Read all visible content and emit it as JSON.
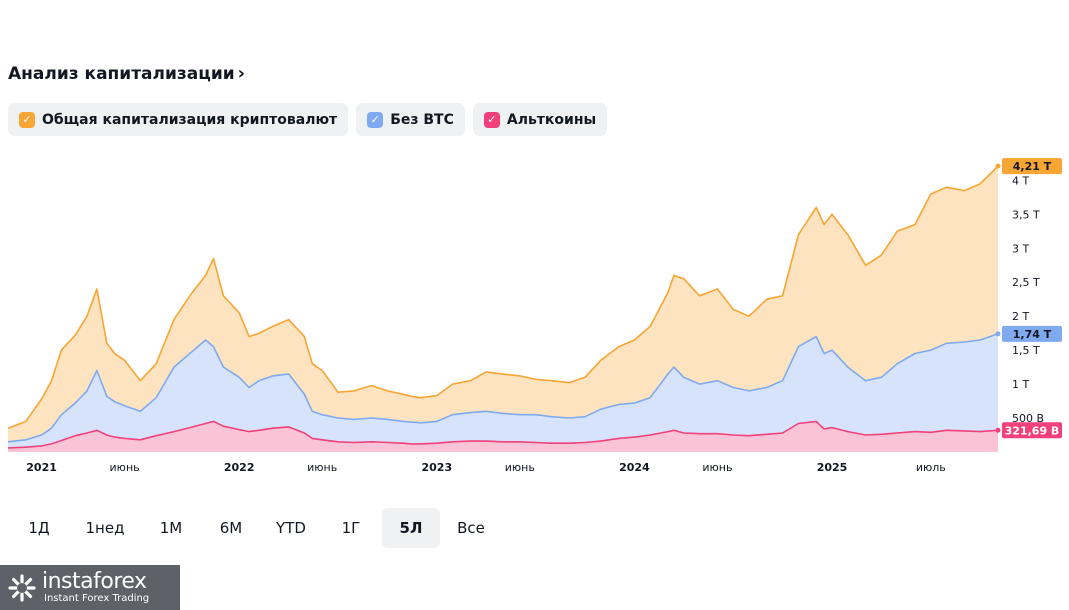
{
  "header": {
    "title": "Анализ капитализации",
    "chevron": "›"
  },
  "legend": [
    {
      "label": "Общая капитализация криптовалют",
      "color": "#f7a533",
      "checked": true
    },
    {
      "label": "Без BTC",
      "color": "#7faaf0",
      "checked": true
    },
    {
      "label": "Альткоины",
      "color": "#f2407a",
      "checked": true
    }
  ],
  "chart_data": {
    "type": "area",
    "title": "Анализ капитализации",
    "x_range": [
      2020.83,
      2025.84
    ],
    "y_range": [
      0,
      4.3
    ],
    "y_ticks": [
      {
        "value": 0.5,
        "label": "500 B"
      },
      {
        "value": 1.0,
        "label": "1 T"
      },
      {
        "value": 1.5,
        "label": "1,5 T"
      },
      {
        "value": 2.0,
        "label": "2 T"
      },
      {
        "value": 2.5,
        "label": "2,5 T"
      },
      {
        "value": 3.0,
        "label": "3 T"
      },
      {
        "value": 3.5,
        "label": "3,5 T"
      },
      {
        "value": 4.0,
        "label": "4 T"
      }
    ],
    "x_ticks": [
      {
        "value": 2021.0,
        "label": "2021",
        "major": true
      },
      {
        "value": 2021.42,
        "label": "июнь",
        "major": false
      },
      {
        "value": 2022.0,
        "label": "2022",
        "major": true
      },
      {
        "value": 2022.42,
        "label": "июнь",
        "major": false
      },
      {
        "value": 2023.0,
        "label": "2023",
        "major": true
      },
      {
        "value": 2023.42,
        "label": "июнь",
        "major": false
      },
      {
        "value": 2024.0,
        "label": "2024",
        "major": true
      },
      {
        "value": 2024.42,
        "label": "июнь",
        "major": false
      },
      {
        "value": 2025.0,
        "label": "2025",
        "major": true
      },
      {
        "value": 2025.5,
        "label": "июль",
        "major": false
      }
    ],
    "x": [
      2020.83,
      2020.92,
      2021.0,
      2021.05,
      2021.1,
      2021.17,
      2021.23,
      2021.28,
      2021.33,
      2021.37,
      2021.42,
      2021.5,
      2021.58,
      2021.67,
      2021.75,
      2021.83,
      2021.87,
      2021.92,
      2022.0,
      2022.05,
      2022.1,
      2022.17,
      2022.25,
      2022.33,
      2022.37,
      2022.42,
      2022.5,
      2022.58,
      2022.67,
      2022.75,
      2022.83,
      2022.87,
      2022.92,
      2023.0,
      2023.08,
      2023.17,
      2023.25,
      2023.33,
      2023.42,
      2023.5,
      2023.58,
      2023.67,
      2023.75,
      2023.83,
      2023.92,
      2024.0,
      2024.08,
      2024.17,
      2024.2,
      2024.25,
      2024.33,
      2024.42,
      2024.5,
      2024.58,
      2024.67,
      2024.75,
      2024.83,
      2024.92,
      2024.96,
      2025.0,
      2025.08,
      2025.17,
      2025.25,
      2025.33,
      2025.42,
      2025.5,
      2025.58,
      2025.67,
      2025.75,
      2025.84
    ],
    "series": [
      {
        "name": "Общая капитализация криптовалют",
        "color": "#f7a533",
        "last_label": "4,21 T",
        "values": [
          0.35,
          0.45,
          0.78,
          1.05,
          1.5,
          1.72,
          2.0,
          2.4,
          1.6,
          1.45,
          1.35,
          1.05,
          1.3,
          1.95,
          2.3,
          2.6,
          2.85,
          2.3,
          2.05,
          1.7,
          1.75,
          1.85,
          1.95,
          1.7,
          1.3,
          1.2,
          0.88,
          0.9,
          0.98,
          0.9,
          0.85,
          0.82,
          0.8,
          0.83,
          1.0,
          1.05,
          1.18,
          1.15,
          1.12,
          1.07,
          1.05,
          1.02,
          1.1,
          1.35,
          1.55,
          1.65,
          1.85,
          2.35,
          2.6,
          2.55,
          2.3,
          2.4,
          2.1,
          2.0,
          2.25,
          2.3,
          3.2,
          3.6,
          3.35,
          3.5,
          3.2,
          2.75,
          2.9,
          3.25,
          3.35,
          3.8,
          3.9,
          3.85,
          3.95,
          4.21
        ]
      },
      {
        "name": "Без BTC",
        "color": "#7faaf0",
        "last_label": "1,74 T",
        "values": [
          0.15,
          0.18,
          0.25,
          0.35,
          0.55,
          0.72,
          0.9,
          1.2,
          0.82,
          0.74,
          0.68,
          0.6,
          0.8,
          1.25,
          1.45,
          1.65,
          1.55,
          1.25,
          1.1,
          0.95,
          1.05,
          1.12,
          1.15,
          0.85,
          0.6,
          0.55,
          0.5,
          0.48,
          0.5,
          0.48,
          0.45,
          0.44,
          0.43,
          0.45,
          0.55,
          0.58,
          0.6,
          0.57,
          0.55,
          0.55,
          0.52,
          0.5,
          0.52,
          0.63,
          0.7,
          0.72,
          0.8,
          1.15,
          1.25,
          1.1,
          1.0,
          1.05,
          0.95,
          0.9,
          0.95,
          1.05,
          1.55,
          1.7,
          1.45,
          1.5,
          1.25,
          1.05,
          1.1,
          1.3,
          1.45,
          1.5,
          1.6,
          1.62,
          1.65,
          1.74
        ]
      },
      {
        "name": "Альткоины",
        "color": "#f2407a",
        "last_label": "321,69 B",
        "values": [
          0.06,
          0.07,
          0.09,
          0.12,
          0.17,
          0.24,
          0.28,
          0.32,
          0.25,
          0.22,
          0.2,
          0.18,
          0.24,
          0.3,
          0.36,
          0.42,
          0.45,
          0.38,
          0.33,
          0.3,
          0.32,
          0.35,
          0.37,
          0.28,
          0.2,
          0.18,
          0.15,
          0.14,
          0.15,
          0.14,
          0.13,
          0.12,
          0.12,
          0.13,
          0.15,
          0.16,
          0.16,
          0.15,
          0.15,
          0.14,
          0.13,
          0.13,
          0.14,
          0.16,
          0.2,
          0.22,
          0.25,
          0.3,
          0.32,
          0.28,
          0.27,
          0.27,
          0.25,
          0.24,
          0.26,
          0.28,
          0.42,
          0.45,
          0.34,
          0.36,
          0.3,
          0.25,
          0.26,
          0.28,
          0.3,
          0.29,
          0.32,
          0.31,
          0.3,
          0.32
        ]
      }
    ]
  },
  "ranges": {
    "options": [
      "1Д",
      "1нед",
      "1М",
      "6М",
      "YTD",
      "1Г",
      "5Л",
      "Все"
    ],
    "selected": "5Л"
  },
  "watermark": {
    "brand": "instaforex",
    "tagline": "Instant Forex Trading"
  }
}
